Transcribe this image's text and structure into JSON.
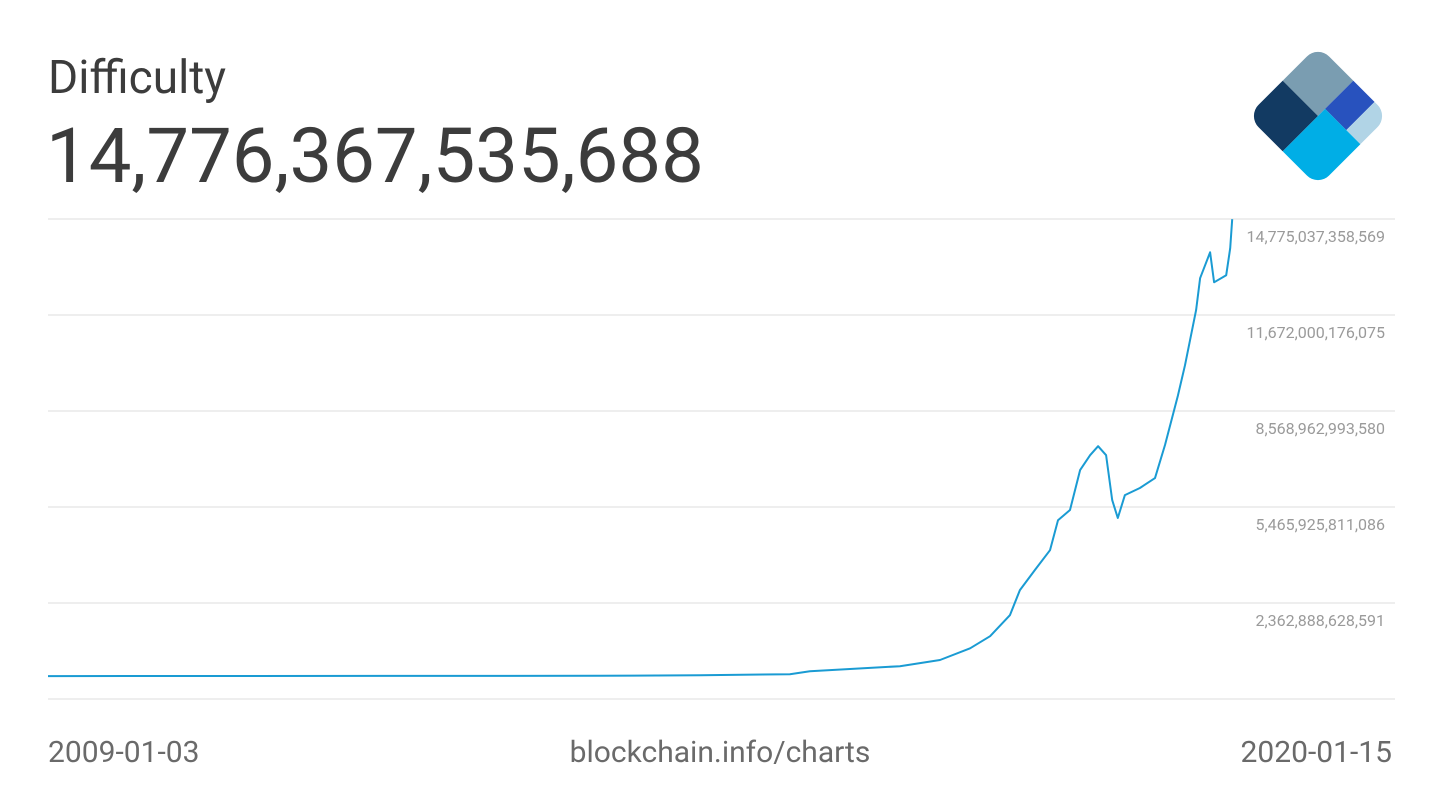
{
  "chart_data": {
    "type": "line",
    "title": "Difficulty",
    "headline": "14,776,367,535,688",
    "source": "blockchain.info/charts",
    "xlim": [
      "2009-01-03",
      "2020-01-15"
    ],
    "ylim": [
      -740148553903,
      14775037358569
    ],
    "yticks": [
      {
        "value": 2362888628591,
        "label": "2,362,888,628,591"
      },
      {
        "value": 5465925811086,
        "label": "5,465,925,811,086"
      },
      {
        "value": 8568962993580,
        "label": "8,568,962,993,580"
      },
      {
        "value": 11672000176075,
        "label": "11,672,000,176,075"
      },
      {
        "value": 14775037358569,
        "label": "14,775,037,358,569"
      }
    ],
    "grid": true,
    "series": [
      {
        "name": "Difficulty",
        "color": "#1a9bd3",
        "x": [
          "2009-01-03",
          "2013-07-12",
          "2014-05-08",
          "2015-01-31",
          "2015-04-01",
          "2015-07-30",
          "2015-12-26",
          "2016-04-24",
          "2016-07-23",
          "2016-09-21",
          "2016-11-19",
          "2016-12-19",
          "2017-02-02",
          "2017-03-19",
          "2017-04-12",
          "2017-05-18",
          "2017-06-17",
          "2017-07-17",
          "2017-08-10",
          "2017-09-03",
          "2017-09-21",
          "2017-10-08",
          "2017-10-29",
          "2017-12-13",
          "2018-01-27",
          "2018-02-26",
          "2018-04-06",
          "2018-04-27",
          "2018-05-30",
          "2018-06-11",
          "2018-07-11",
          "2018-07-23",
          "2018-08-28",
          "2018-09-09",
          "2018-09-15"
        ],
        "values": [
          0,
          10000000000,
          30000000000,
          60000000000,
          160000000000,
          230000000000,
          320000000000,
          520000000000,
          900000000000,
          1290000000000,
          1970000000000,
          2780000000000,
          3430000000000,
          4070000000000,
          5040000000000,
          5370000000000,
          6660000000000,
          7140000000000,
          7430000000000,
          7140000000000,
          5690000000000,
          5110000000000,
          5850000000000,
          6080000000000,
          6400000000000,
          7470000000000,
          9080000000000,
          10050000000000,
          11830000000000,
          12860000000000,
          13700000000000,
          12730000000000,
          12960000000000,
          13830000000000,
          14770000000000
        ]
      }
    ]
  }
}
